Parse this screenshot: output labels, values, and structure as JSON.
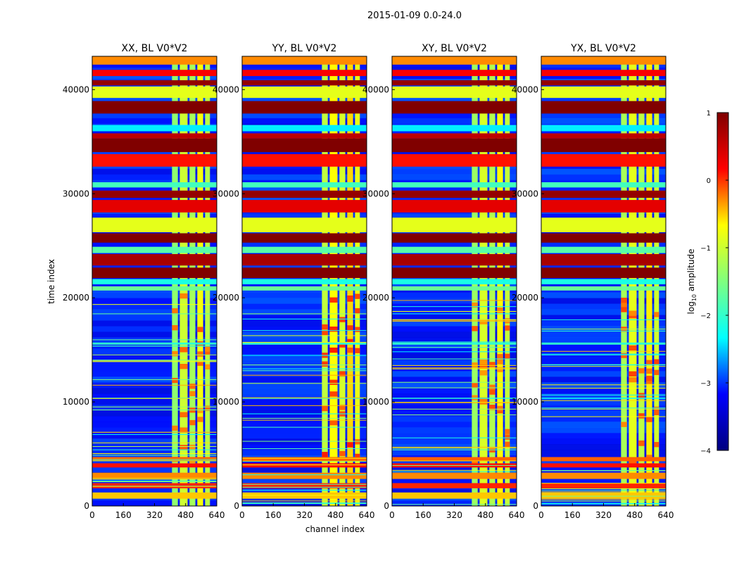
{
  "figure": {
    "suptitle": "2015-01-09 0.0-24.0",
    "xlabel": "channel index",
    "ylabel": "time index"
  },
  "colorbar": {
    "label_main": "log",
    "label_sub": "10",
    "label_rest": " amplitude",
    "range": [
      -4,
      1
    ],
    "ticks": [
      "1",
      "0",
      "−1",
      "−2",
      "−3",
      "−4"
    ],
    "tick_values": [
      1,
      0,
      -1,
      -2,
      -3,
      -4
    ],
    "colormap": "jet",
    "colormap_stops": [
      "#00007f",
      "#0000ff",
      "#00ffff",
      "#7fff7f",
      "#ffff00",
      "#ff0000",
      "#7f0000"
    ]
  },
  "chart_data": [
    {
      "type": "heatmap",
      "title": "XX, BL V0*V2",
      "xlabel": "",
      "ylabel": "time index",
      "xlim": [
        0,
        640
      ],
      "ylim": [
        0,
        43200
      ],
      "xticks": [
        0,
        160,
        320,
        480,
        640
      ],
      "yticks": [
        0,
        10000,
        20000,
        30000,
        40000
      ],
      "band_strength": 0.8
    },
    {
      "type": "heatmap",
      "title": "YY, BL V0*V2",
      "xlabel": "channel index",
      "ylabel": "",
      "xlim": [
        0,
        640
      ],
      "ylim": [
        0,
        43200
      ],
      "xticks": [
        0,
        160,
        320,
        480,
        640
      ],
      "yticks": [
        0,
        10000,
        20000,
        30000,
        40000
      ],
      "band_strength": 1.2
    },
    {
      "type": "heatmap",
      "title": "XY, BL V0*V2",
      "xlabel": "",
      "ylabel": "",
      "xlim": [
        0,
        640
      ],
      "ylim": [
        0,
        43200
      ],
      "xticks": [
        0,
        160,
        320,
        480,
        640
      ],
      "yticks": [
        0,
        10000,
        20000,
        30000,
        40000
      ],
      "band_strength": 0.9
    },
    {
      "type": "heatmap",
      "title": "YX, BL V0*V2",
      "xlabel": "",
      "ylabel": "",
      "xlim": [
        0,
        640
      ],
      "ylim": [
        0,
        43200
      ],
      "xticks": [
        0,
        160,
        320,
        480,
        640
      ],
      "yticks": [
        0,
        10000,
        20000,
        30000,
        40000
      ],
      "band_strength": 1.0
    }
  ],
  "horizontal_bands": [
    {
      "t0": 42400,
      "t1": 43200,
      "value": -0.3
    },
    {
      "t0": 41300,
      "t1": 41900,
      "value": 0.4
    },
    {
      "t0": 40400,
      "t1": 40900,
      "value": 0.9
    },
    {
      "t0": 39200,
      "t1": 40300,
      "value": -1.0
    },
    {
      "t0": 37700,
      "t1": 38900,
      "value": 1.0
    },
    {
      "t0": 36000,
      "t1": 36600,
      "value": -2.2
    },
    {
      "t0": 35300,
      "t1": 35800,
      "value": 0.7
    },
    {
      "t0": 34000,
      "t1": 35300,
      "value": 1.0
    },
    {
      "t0": 32600,
      "t1": 33800,
      "value": 0.3
    },
    {
      "t0": 30600,
      "t1": 31100,
      "value": -1.8
    },
    {
      "t0": 29600,
      "t1": 30300,
      "value": 0.9
    },
    {
      "t0": 28200,
      "t1": 29400,
      "value": 0.5
    },
    {
      "t0": 26300,
      "t1": 27700,
      "value": -1.0
    },
    {
      "t0": 25300,
      "t1": 26200,
      "value": 1.0
    },
    {
      "t0": 24300,
      "t1": 24900,
      "value": -1.7
    },
    {
      "t0": 23100,
      "t1": 24200,
      "value": 0.8
    },
    {
      "t0": 21900,
      "t1": 22900,
      "value": 1.0
    },
    {
      "t0": 21300,
      "t1": 21800,
      "value": -2.0
    },
    {
      "t0": 20700,
      "t1": 21100,
      "value": -1.6
    },
    {
      "t0": 15500,
      "t1": 15700,
      "value": -1.9
    },
    {
      "t0": 10300,
      "t1": 10400,
      "value": -1.9
    },
    {
      "t0": 4300,
      "t1": 4700,
      "value": -0.1
    },
    {
      "t0": 3700,
      "t1": 4100,
      "value": 0.3
    },
    {
      "t0": 2600,
      "t1": 3200,
      "value": -0.3
    },
    {
      "t0": 1700,
      "t1": 2200,
      "value": 0.2
    },
    {
      "t0": 700,
      "t1": 1300,
      "value": -0.6
    }
  ],
  "channel_bands": [
    {
      "c0": 410,
      "c1": 440,
      "value": -1.3
    },
    {
      "c0": 450,
      "c1": 490,
      "value": -1.0
    },
    {
      "c0": 500,
      "c1": 530,
      "value": -1.2
    },
    {
      "c0": 540,
      "c1": 570,
      "value": -0.8
    },
    {
      "c0": 580,
      "c1": 605,
      "value": -1.1
    }
  ],
  "background_value": -3.2
}
